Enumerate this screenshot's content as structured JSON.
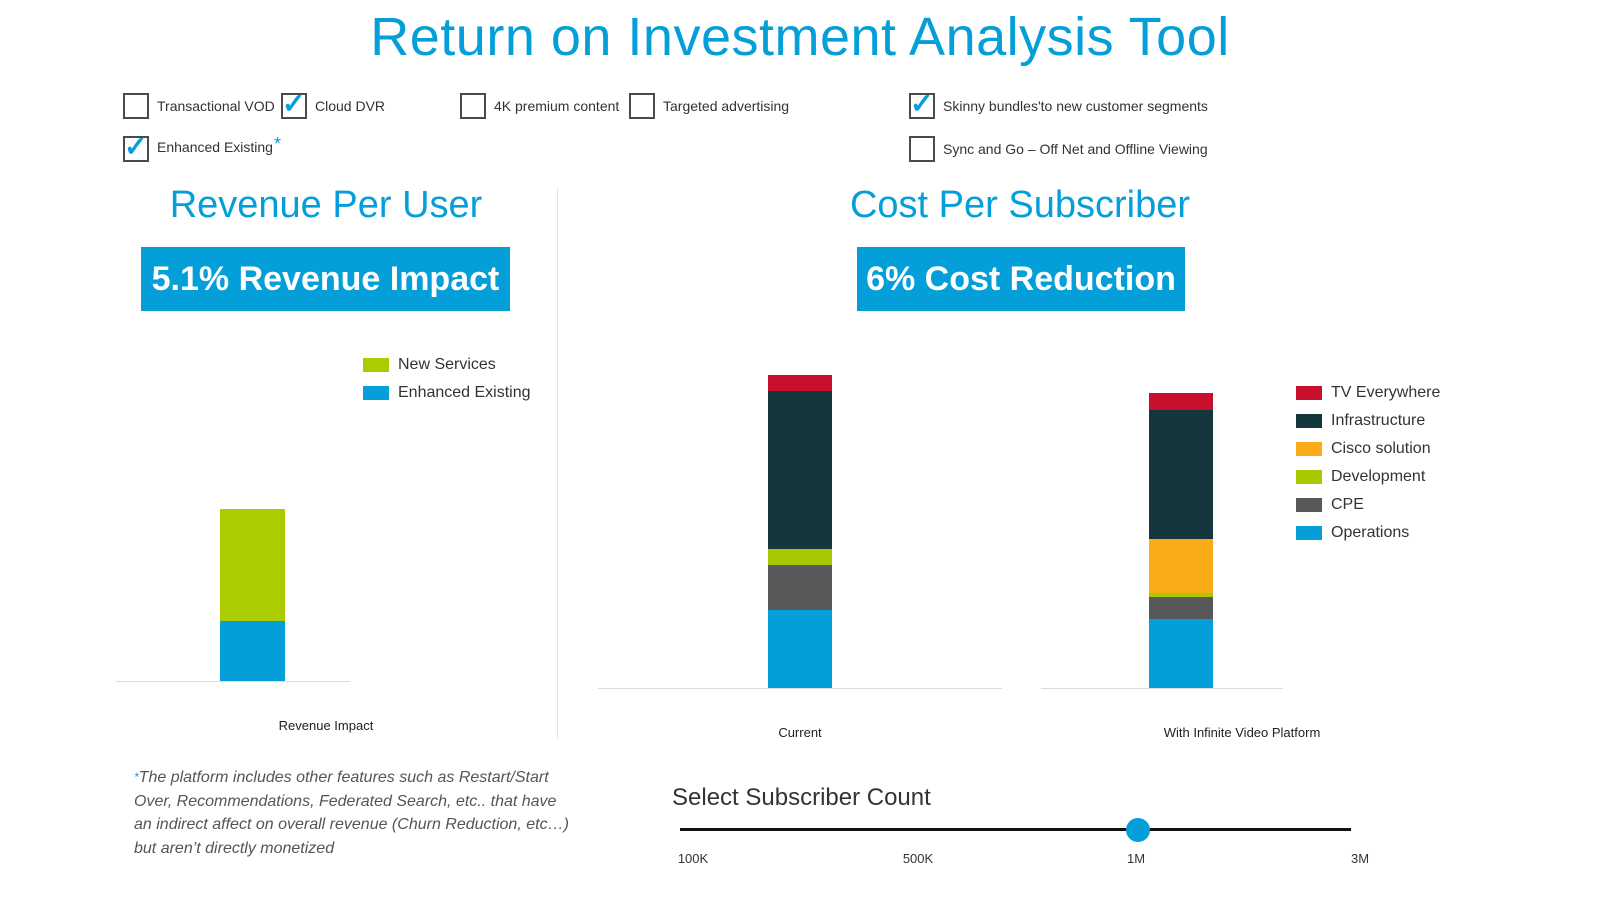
{
  "header": {
    "title": "Return on Investment Analysis Tool"
  },
  "colors": {
    "accent": "#049fd9",
    "tv_everywhere": "#c8102e",
    "infrastructure": "#14363d",
    "cisco_solution": "#fbab18",
    "development": "#a8c800",
    "cpe": "#58585b",
    "operations": "#049fd9",
    "new_services": "#aacc00",
    "enhanced_existing": "#049fd9"
  },
  "options": [
    {
      "id": "transactional-vod",
      "label": "Transactional VOD",
      "checked": false,
      "asterisk": ""
    },
    {
      "id": "cloud-dvr",
      "label": "Cloud DVR",
      "checked": true,
      "asterisk": ""
    },
    {
      "id": "4k-premium-content",
      "label": "4K premium content",
      "checked": false,
      "asterisk": ""
    },
    {
      "id": "targeted-advertising",
      "label": "Targeted advertising",
      "checked": false,
      "asterisk": ""
    },
    {
      "id": "skinny-bundles",
      "label": "Skinny bundles'to new customer segments",
      "checked": true,
      "asterisk": ""
    },
    {
      "id": "enhanced-existing",
      "label": "Enhanced Existing",
      "checked": true,
      "asterisk": "*"
    },
    {
      "id": "sync-and-go",
      "label": "Sync and Go – Off Net and Offline Viewing",
      "checked": false,
      "asterisk": ""
    }
  ],
  "revenue": {
    "title": "Revenue Per User",
    "badge": "5.1% Revenue Impact"
  },
  "cost": {
    "title": "Cost Per Subscriber",
    "badge": "6% Cost Reduction"
  },
  "chart_data": [
    {
      "type": "bar",
      "stacked": true,
      "title": "",
      "categories": [
        "Revenue Impact"
      ],
      "series": [
        {
          "name": "Enhanced Existing",
          "color": "#049fd9",
          "values": [
            60
          ]
        },
        {
          "name": "New Services",
          "color": "#aacc00",
          "values": [
            112
          ]
        }
      ],
      "ylim": [
        0,
        330
      ],
      "legend": "top-right",
      "legend_order": [
        "New Services",
        "Enhanced Existing"
      ],
      "grid": false
    },
    {
      "type": "bar",
      "stacked": true,
      "title": "",
      "categories": [
        "Current",
        "With Infinite Video Platform"
      ],
      "series": [
        {
          "name": "Operations",
          "color": "#049fd9",
          "values": [
            78,
            69
          ]
        },
        {
          "name": "CPE",
          "color": "#58585b",
          "values": [
            45,
            22
          ]
        },
        {
          "name": "Development",
          "color": "#a8c800",
          "values": [
            16,
            4
          ]
        },
        {
          "name": "Cisco solution",
          "color": "#fbab18",
          "values": [
            0,
            54
          ]
        },
        {
          "name": "Infrastructure",
          "color": "#14363d",
          "values": [
            158,
            129
          ]
        },
        {
          "name": "TV Everywhere",
          "color": "#c8102e",
          "values": [
            16,
            17
          ]
        }
      ],
      "ylim": [
        0,
        330
      ],
      "legend": "right",
      "legend_order": [
        "TV Everywhere",
        "Infrastructure",
        "Cisco solution",
        "Development",
        "CPE",
        "Operations"
      ],
      "grid": false
    }
  ],
  "footnote": {
    "star": "*",
    "text": "The platform includes other features such as Restart/Start Over, Recommendations, Federated Search, etc.. that have an indirect affect on overall revenue (Churn Reduction, etc…) but aren’t directly monetized"
  },
  "slider": {
    "title": "Select Subscriber Count",
    "ticks": [
      "100K",
      "500K",
      "1M",
      "3M"
    ],
    "selected": "1M"
  }
}
